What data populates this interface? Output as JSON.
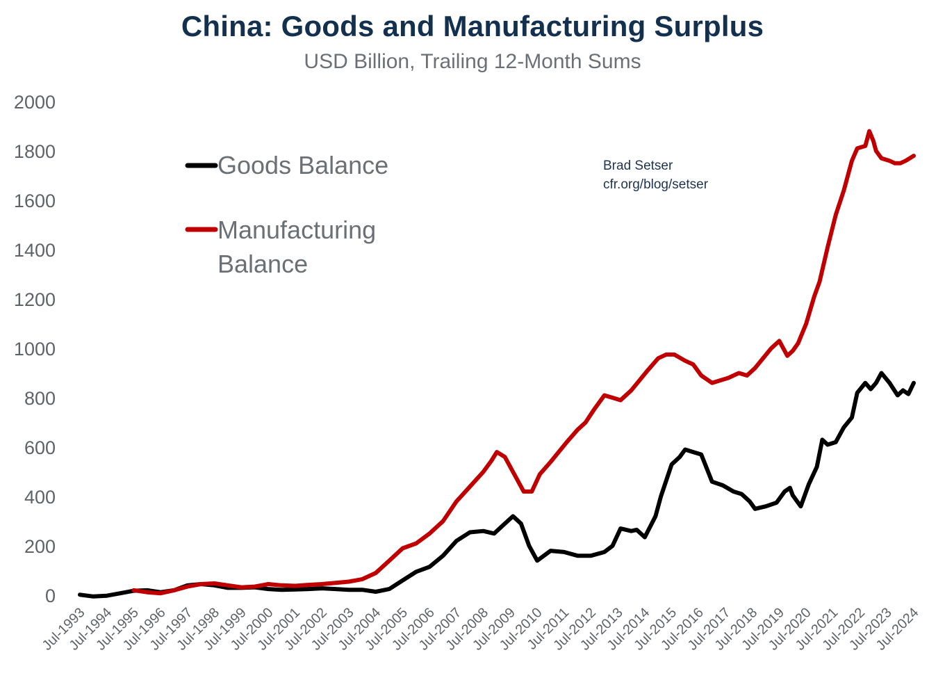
{
  "chart_data": {
    "type": "line",
    "title": "China: Goods and Manufacturing Surplus",
    "subtitle": "USD Billion, Trailing 12-Month Sums",
    "xlabel": "",
    "ylabel": "",
    "ylim": [
      0,
      2000
    ],
    "yticks": [
      "0",
      "200",
      "400",
      "600",
      "800",
      "1000",
      "1200",
      "1400",
      "1600",
      "1800",
      "2000"
    ],
    "xlim": [
      1993.5,
      2024.5
    ],
    "xticks": [
      "Jul-1993",
      "Jul-1994",
      "Jul-1995",
      "Jul-1996",
      "Jul-1997",
      "Jul-1998",
      "Jul-1999",
      "Jul-2000",
      "Jul-2001",
      "Jul-2002",
      "Jul-2003",
      "Jul-2004",
      "Jul-2005",
      "Jul-2006",
      "Jul-2007",
      "Jul-2008",
      "Jul-2009",
      "Jul-2010",
      "Jul-2011",
      "Jul-2012",
      "Jul-2013",
      "Jul-2014",
      "Jul-2015",
      "Jul-2016",
      "Jul-2017",
      "Jul-2018",
      "Jul-2019",
      "Jul-2020",
      "Jul-2021",
      "Jul-2022",
      "Jul-2023",
      "Jul-2024"
    ],
    "grid": false,
    "legend_position": "top-left",
    "series": [
      {
        "name": "Goods Balance",
        "color": "#000000",
        "x": [
          1993.5,
          1994.0,
          1994.5,
          1995.0,
          1995.5,
          1996.0,
          1996.5,
          1997.0,
          1997.5,
          1998.0,
          1998.5,
          1999.0,
          1999.5,
          2000.0,
          2000.5,
          2001.0,
          2001.5,
          2002.0,
          2002.5,
          2003.0,
          2003.5,
          2004.0,
          2004.5,
          2005.0,
          2005.5,
          2006.0,
          2006.5,
          2007.0,
          2007.5,
          2008.0,
          2008.5,
          2008.9,
          2009.2,
          2009.6,
          2009.9,
          2010.2,
          2010.5,
          2011.0,
          2011.5,
          2012.0,
          2012.5,
          2013.0,
          2013.3,
          2013.6,
          2014.0,
          2014.2,
          2014.5,
          2014.9,
          2015.1,
          2015.5,
          2015.8,
          2016.0,
          2016.3,
          2016.6,
          2017.0,
          2017.4,
          2017.8,
          2018.1,
          2018.4,
          2018.6,
          2019.0,
          2019.4,
          2019.7,
          2019.9,
          2020.0,
          2020.3,
          2020.6,
          2020.9,
          2021.1,
          2021.3,
          2021.6,
          2021.9,
          2022.2,
          2022.4,
          2022.7,
          2022.9,
          2023.1,
          2023.3,
          2023.6,
          2023.9,
          2024.1,
          2024.3,
          2024.5
        ],
        "values": [
          2,
          -5,
          -2,
          8,
          18,
          20,
          12,
          20,
          40,
          45,
          40,
          30,
          30,
          32,
          25,
          22,
          23,
          25,
          28,
          25,
          22,
          22,
          14,
          25,
          60,
          95,
          115,
          160,
          220,
          255,
          260,
          250,
          280,
          320,
          290,
          200,
          140,
          180,
          175,
          160,
          160,
          175,
          200,
          270,
          260,
          265,
          235,
          320,
          400,
          530,
          560,
          590,
          580,
          570,
          460,
          445,
          420,
          410,
          380,
          350,
          360,
          375,
          420,
          435,
          405,
          360,
          450,
          520,
          630,
          610,
          620,
          680,
          720,
          820,
          860,
          835,
          860,
          900,
          860,
          810,
          830,
          815,
          860
        ]
      },
      {
        "name": "Manufacturing Balance",
        "color": "#c00000",
        "x": [
          1995.5,
          1996.0,
          1996.5,
          1997.0,
          1997.5,
          1998.0,
          1998.5,
          1999.0,
          1999.5,
          2000.0,
          2000.5,
          2001.0,
          2001.5,
          2002.0,
          2002.5,
          2003.0,
          2003.5,
          2004.0,
          2004.5,
          2005.0,
          2005.5,
          2006.0,
          2006.5,
          2007.0,
          2007.5,
          2008.0,
          2008.5,
          2008.8,
          2009.0,
          2009.3,
          2009.6,
          2010.0,
          2010.3,
          2010.6,
          2011.0,
          2011.3,
          2011.6,
          2012.0,
          2012.3,
          2012.6,
          2013.0,
          2013.3,
          2013.6,
          2014.0,
          2014.3,
          2014.6,
          2015.0,
          2015.3,
          2015.6,
          2016.0,
          2016.3,
          2016.6,
          2017.0,
          2017.3,
          2017.6,
          2018.0,
          2018.3,
          2018.6,
          2018.9,
          2019.2,
          2019.5,
          2019.8,
          2020.0,
          2020.2,
          2020.5,
          2020.8,
          2021.0,
          2021.3,
          2021.6,
          2021.9,
          2022.2,
          2022.4,
          2022.7,
          2022.85,
          2023.0,
          2023.1,
          2023.3,
          2023.6,
          2023.8,
          2024.0,
          2024.2,
          2024.5
        ],
        "values": [
          20,
          12,
          8,
          20,
          35,
          45,
          48,
          40,
          32,
          35,
          45,
          40,
          38,
          42,
          45,
          50,
          55,
          65,
          90,
          140,
          190,
          210,
          250,
          300,
          380,
          440,
          500,
          545,
          580,
          560,
          500,
          420,
          420,
          490,
          540,
          580,
          620,
          670,
          700,
          750,
          810,
          800,
          790,
          830,
          870,
          910,
          960,
          975,
          975,
          950,
          935,
          890,
          860,
          870,
          880,
          900,
          890,
          920,
          960,
          1000,
          1030,
          970,
          990,
          1020,
          1100,
          1210,
          1270,
          1410,
          1540,
          1640,
          1760,
          1810,
          1820,
          1880,
          1840,
          1800,
          1770,
          1760,
          1750,
          1750,
          1760,
          1780
        ]
      }
    ],
    "annotations": [
      "Brad Setser",
      "cfr.org/blog/setser"
    ]
  }
}
